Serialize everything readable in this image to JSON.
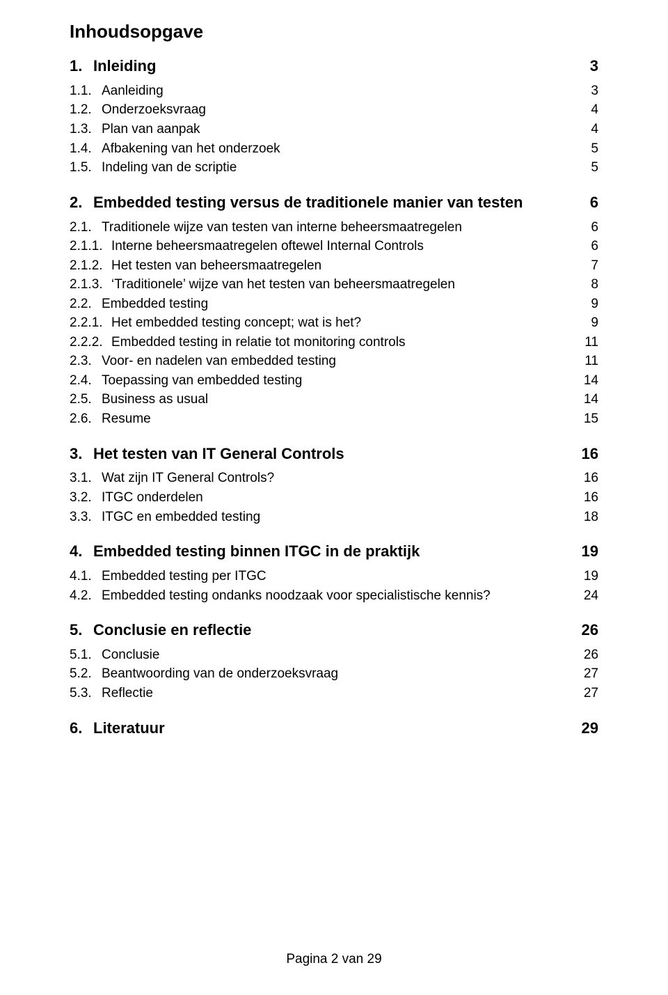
{
  "title": "Inhoudsopgave",
  "footer": "Pagina 2 van 29",
  "toc": [
    {
      "num": "1.",
      "label": "Inleiding",
      "page": "3",
      "children": [
        {
          "num": "1.1.",
          "label": "Aanleiding",
          "page": "3"
        },
        {
          "num": "1.2.",
          "label": "Onderzoeksvraag",
          "page": "4"
        },
        {
          "num": "1.3.",
          "label": "Plan van aanpak",
          "page": "4"
        },
        {
          "num": "1.4.",
          "label": "Afbakening van het onderzoek",
          "page": "5"
        },
        {
          "num": "1.5.",
          "label": "Indeling van de scriptie",
          "page": "5"
        }
      ]
    },
    {
      "num": "2.",
      "label": "Embedded testing versus de traditionele manier van testen",
      "page": "6",
      "children": [
        {
          "num": "2.1.",
          "label": "Traditionele wijze van testen van interne beheersmaatregelen",
          "page": "6",
          "children": [
            {
              "num": "2.1.1.",
              "label": "Interne beheersmaatregelen oftewel Internal Controls",
              "page": "6"
            },
            {
              "num": "2.1.2.",
              "label": "Het testen van beheersmaatregelen",
              "page": "7"
            },
            {
              "num": "2.1.3.",
              "label": "‘Traditionele’ wijze van het testen van beheersmaatregelen",
              "page": "8"
            }
          ]
        },
        {
          "num": "2.2.",
          "label": "Embedded testing",
          "page": "9",
          "children": [
            {
              "num": "2.2.1.",
              "label": "Het embedded testing concept; wat is het?",
              "page": "9"
            },
            {
              "num": "2.2.2.",
              "label": "Embedded testing in relatie tot monitoring controls",
              "page": "11"
            }
          ]
        },
        {
          "num": "2.3.",
          "label": "Voor- en nadelen van embedded testing",
          "page": "11"
        },
        {
          "num": "2.4.",
          "label": "Toepassing van embedded testing",
          "page": "14"
        },
        {
          "num": "2.5.",
          "label": "Business as usual",
          "page": "14"
        },
        {
          "num": "2.6.",
          "label": "Resume",
          "page": "15"
        }
      ]
    },
    {
      "num": "3.",
      "label": "Het testen van IT General Controls",
      "page": "16",
      "children": [
        {
          "num": "3.1.",
          "label": "Wat zijn IT General Controls?",
          "page": "16"
        },
        {
          "num": "3.2.",
          "label": "ITGC onderdelen",
          "page": "16"
        },
        {
          "num": "3.3.",
          "label": "ITGC en embedded testing",
          "page": "18"
        }
      ]
    },
    {
      "num": "4.",
      "label": "Embedded testing binnen ITGC in de praktijk",
      "page": "19",
      "children": [
        {
          "num": "4.1.",
          "label": "Embedded testing per ITGC",
          "page": "19"
        },
        {
          "num": "4.2.",
          "label": "Embedded testing ondanks noodzaak voor specialistische kennis?",
          "page": "24"
        }
      ]
    },
    {
      "num": "5.",
      "label": "Conclusie en reflectie",
      "page": "26",
      "children": [
        {
          "num": "5.1.",
          "label": "Conclusie",
          "page": "26"
        },
        {
          "num": "5.2.",
          "label": "Beantwoording van de onderzoeksvraag",
          "page": "27"
        },
        {
          "num": "5.3.",
          "label": "Reflectie",
          "page": "27"
        }
      ]
    },
    {
      "num": "6.",
      "label": "Literatuur",
      "page": "29",
      "children": []
    }
  ]
}
